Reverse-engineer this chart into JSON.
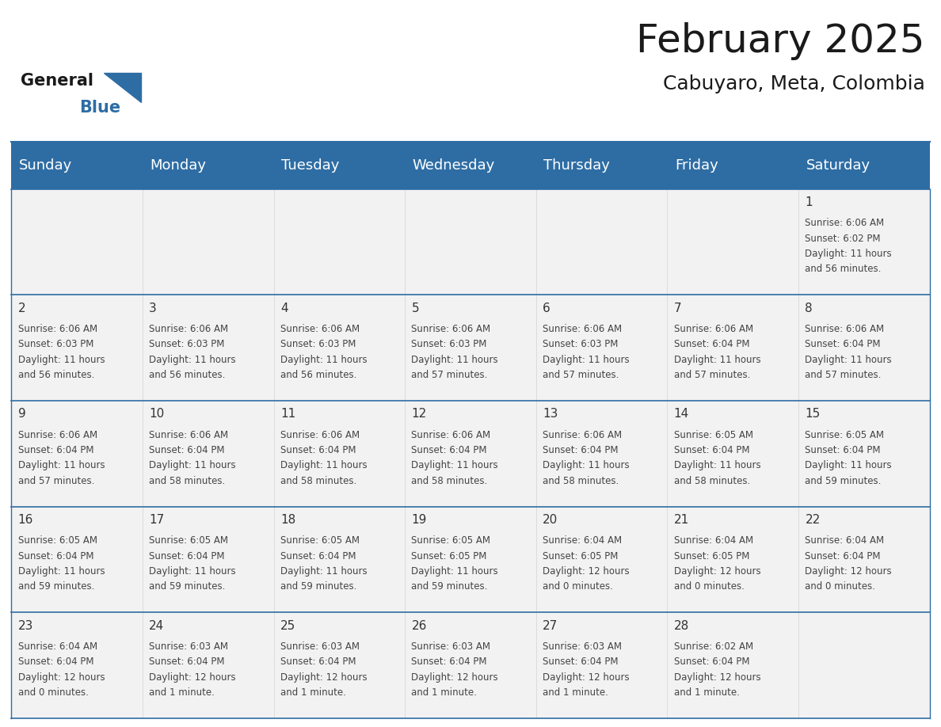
{
  "title": "February 2025",
  "subtitle": "Cabuyaro, Meta, Colombia",
  "header_color": "#2E6DA4",
  "header_text_color": "#FFFFFF",
  "grid_line_color": "#2E6DA4",
  "background_color": "#FFFFFF",
  "cell_bg_color": "#F2F2F2",
  "day_headers": [
    "Sunday",
    "Monday",
    "Tuesday",
    "Wednesday",
    "Thursday",
    "Friday",
    "Saturday"
  ],
  "title_fontsize": 36,
  "subtitle_fontsize": 18,
  "header_fontsize": 13,
  "day_num_fontsize": 11,
  "cell_fontsize": 8.5,
  "logo_general_color": "#1a1a1a",
  "logo_blue_color": "#2E6DA4",
  "text_color": "#444444",
  "day_num_color": "#333333",
  "days": [
    {
      "date": 1,
      "col": 6,
      "row": 0,
      "sunrise": "6:06 AM",
      "sunset": "6:02 PM",
      "daylight_hours": 11,
      "daylight_minutes": 56
    },
    {
      "date": 2,
      "col": 0,
      "row": 1,
      "sunrise": "6:06 AM",
      "sunset": "6:03 PM",
      "daylight_hours": 11,
      "daylight_minutes": 56
    },
    {
      "date": 3,
      "col": 1,
      "row": 1,
      "sunrise": "6:06 AM",
      "sunset": "6:03 PM",
      "daylight_hours": 11,
      "daylight_minutes": 56
    },
    {
      "date": 4,
      "col": 2,
      "row": 1,
      "sunrise": "6:06 AM",
      "sunset": "6:03 PM",
      "daylight_hours": 11,
      "daylight_minutes": 56
    },
    {
      "date": 5,
      "col": 3,
      "row": 1,
      "sunrise": "6:06 AM",
      "sunset": "6:03 PM",
      "daylight_hours": 11,
      "daylight_minutes": 57
    },
    {
      "date": 6,
      "col": 4,
      "row": 1,
      "sunrise": "6:06 AM",
      "sunset": "6:03 PM",
      "daylight_hours": 11,
      "daylight_minutes": 57
    },
    {
      "date": 7,
      "col": 5,
      "row": 1,
      "sunrise": "6:06 AM",
      "sunset": "6:04 PM",
      "daylight_hours": 11,
      "daylight_minutes": 57
    },
    {
      "date": 8,
      "col": 6,
      "row": 1,
      "sunrise": "6:06 AM",
      "sunset": "6:04 PM",
      "daylight_hours": 11,
      "daylight_minutes": 57
    },
    {
      "date": 9,
      "col": 0,
      "row": 2,
      "sunrise": "6:06 AM",
      "sunset": "6:04 PM",
      "daylight_hours": 11,
      "daylight_minutes": 57
    },
    {
      "date": 10,
      "col": 1,
      "row": 2,
      "sunrise": "6:06 AM",
      "sunset": "6:04 PM",
      "daylight_hours": 11,
      "daylight_minutes": 58
    },
    {
      "date": 11,
      "col": 2,
      "row": 2,
      "sunrise": "6:06 AM",
      "sunset": "6:04 PM",
      "daylight_hours": 11,
      "daylight_minutes": 58
    },
    {
      "date": 12,
      "col": 3,
      "row": 2,
      "sunrise": "6:06 AM",
      "sunset": "6:04 PM",
      "daylight_hours": 11,
      "daylight_minutes": 58
    },
    {
      "date": 13,
      "col": 4,
      "row": 2,
      "sunrise": "6:06 AM",
      "sunset": "6:04 PM",
      "daylight_hours": 11,
      "daylight_minutes": 58
    },
    {
      "date": 14,
      "col": 5,
      "row": 2,
      "sunrise": "6:05 AM",
      "sunset": "6:04 PM",
      "daylight_hours": 11,
      "daylight_minutes": 58
    },
    {
      "date": 15,
      "col": 6,
      "row": 2,
      "sunrise": "6:05 AM",
      "sunset": "6:04 PM",
      "daylight_hours": 11,
      "daylight_minutes": 59
    },
    {
      "date": 16,
      "col": 0,
      "row": 3,
      "sunrise": "6:05 AM",
      "sunset": "6:04 PM",
      "daylight_hours": 11,
      "daylight_minutes": 59
    },
    {
      "date": 17,
      "col": 1,
      "row": 3,
      "sunrise": "6:05 AM",
      "sunset": "6:04 PM",
      "daylight_hours": 11,
      "daylight_minutes": 59
    },
    {
      "date": 18,
      "col": 2,
      "row": 3,
      "sunrise": "6:05 AM",
      "sunset": "6:04 PM",
      "daylight_hours": 11,
      "daylight_minutes": 59
    },
    {
      "date": 19,
      "col": 3,
      "row": 3,
      "sunrise": "6:05 AM",
      "sunset": "6:05 PM",
      "daylight_hours": 11,
      "daylight_minutes": 59
    },
    {
      "date": 20,
      "col": 4,
      "row": 3,
      "sunrise": "6:04 AM",
      "sunset": "6:05 PM",
      "daylight_hours": 12,
      "daylight_minutes": 0
    },
    {
      "date": 21,
      "col": 5,
      "row": 3,
      "sunrise": "6:04 AM",
      "sunset": "6:05 PM",
      "daylight_hours": 12,
      "daylight_minutes": 0
    },
    {
      "date": 22,
      "col": 6,
      "row": 3,
      "sunrise": "6:04 AM",
      "sunset": "6:04 PM",
      "daylight_hours": 12,
      "daylight_minutes": 0
    },
    {
      "date": 23,
      "col": 0,
      "row": 4,
      "sunrise": "6:04 AM",
      "sunset": "6:04 PM",
      "daylight_hours": 12,
      "daylight_minutes": 0
    },
    {
      "date": 24,
      "col": 1,
      "row": 4,
      "sunrise": "6:03 AM",
      "sunset": "6:04 PM",
      "daylight_hours": 12,
      "daylight_minutes": 1
    },
    {
      "date": 25,
      "col": 2,
      "row": 4,
      "sunrise": "6:03 AM",
      "sunset": "6:04 PM",
      "daylight_hours": 12,
      "daylight_minutes": 1
    },
    {
      "date": 26,
      "col": 3,
      "row": 4,
      "sunrise": "6:03 AM",
      "sunset": "6:04 PM",
      "daylight_hours": 12,
      "daylight_minutes": 1
    },
    {
      "date": 27,
      "col": 4,
      "row": 4,
      "sunrise": "6:03 AM",
      "sunset": "6:04 PM",
      "daylight_hours": 12,
      "daylight_minutes": 1
    },
    {
      "date": 28,
      "col": 5,
      "row": 4,
      "sunrise": "6:02 AM",
      "sunset": "6:04 PM",
      "daylight_hours": 12,
      "daylight_minutes": 1
    }
  ]
}
